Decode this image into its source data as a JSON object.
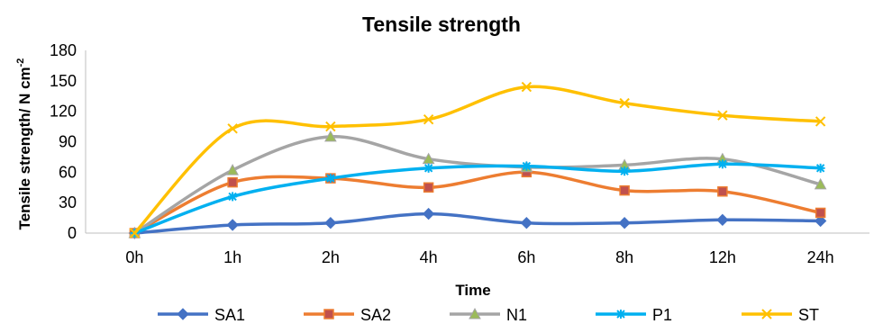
{
  "chart_data": {
    "type": "line",
    "title": "Tensile strength",
    "xlabel": "Time",
    "ylabel": "Tensile strength/ N cm",
    "ylabel_superscript": "-2",
    "categories": [
      "0h",
      "1h",
      "2h",
      "4h",
      "6h",
      "8h",
      "12h",
      "24h"
    ],
    "ylim": [
      0,
      180
    ],
    "yticks": [
      0,
      30,
      60,
      90,
      120,
      150,
      180
    ],
    "grid": false,
    "legend_position": "bottom",
    "series": [
      {
        "name": "SA1",
        "color": "#4472c4",
        "marker": "diamond",
        "values": [
          0,
          8,
          10,
          19,
          10,
          10,
          13,
          12
        ]
      },
      {
        "name": "SA2",
        "color": "#ed7d31",
        "marker": "square",
        "values": [
          0,
          50,
          54,
          45,
          60,
          42,
          41,
          20
        ]
      },
      {
        "name": "N1",
        "color": "#a5a5a5",
        "marker": "triangle",
        "values": [
          0,
          62,
          95,
          73,
          65,
          67,
          73,
          48
        ]
      },
      {
        "name": "P1",
        "color": "#00b0f0",
        "marker": "star",
        "values": [
          0,
          36,
          54,
          64,
          66,
          61,
          68,
          64
        ]
      },
      {
        "name": "ST",
        "color": "#ffc000",
        "marker": "x",
        "values": [
          0,
          103,
          105,
          112,
          144,
          128,
          116,
          110
        ]
      }
    ]
  }
}
